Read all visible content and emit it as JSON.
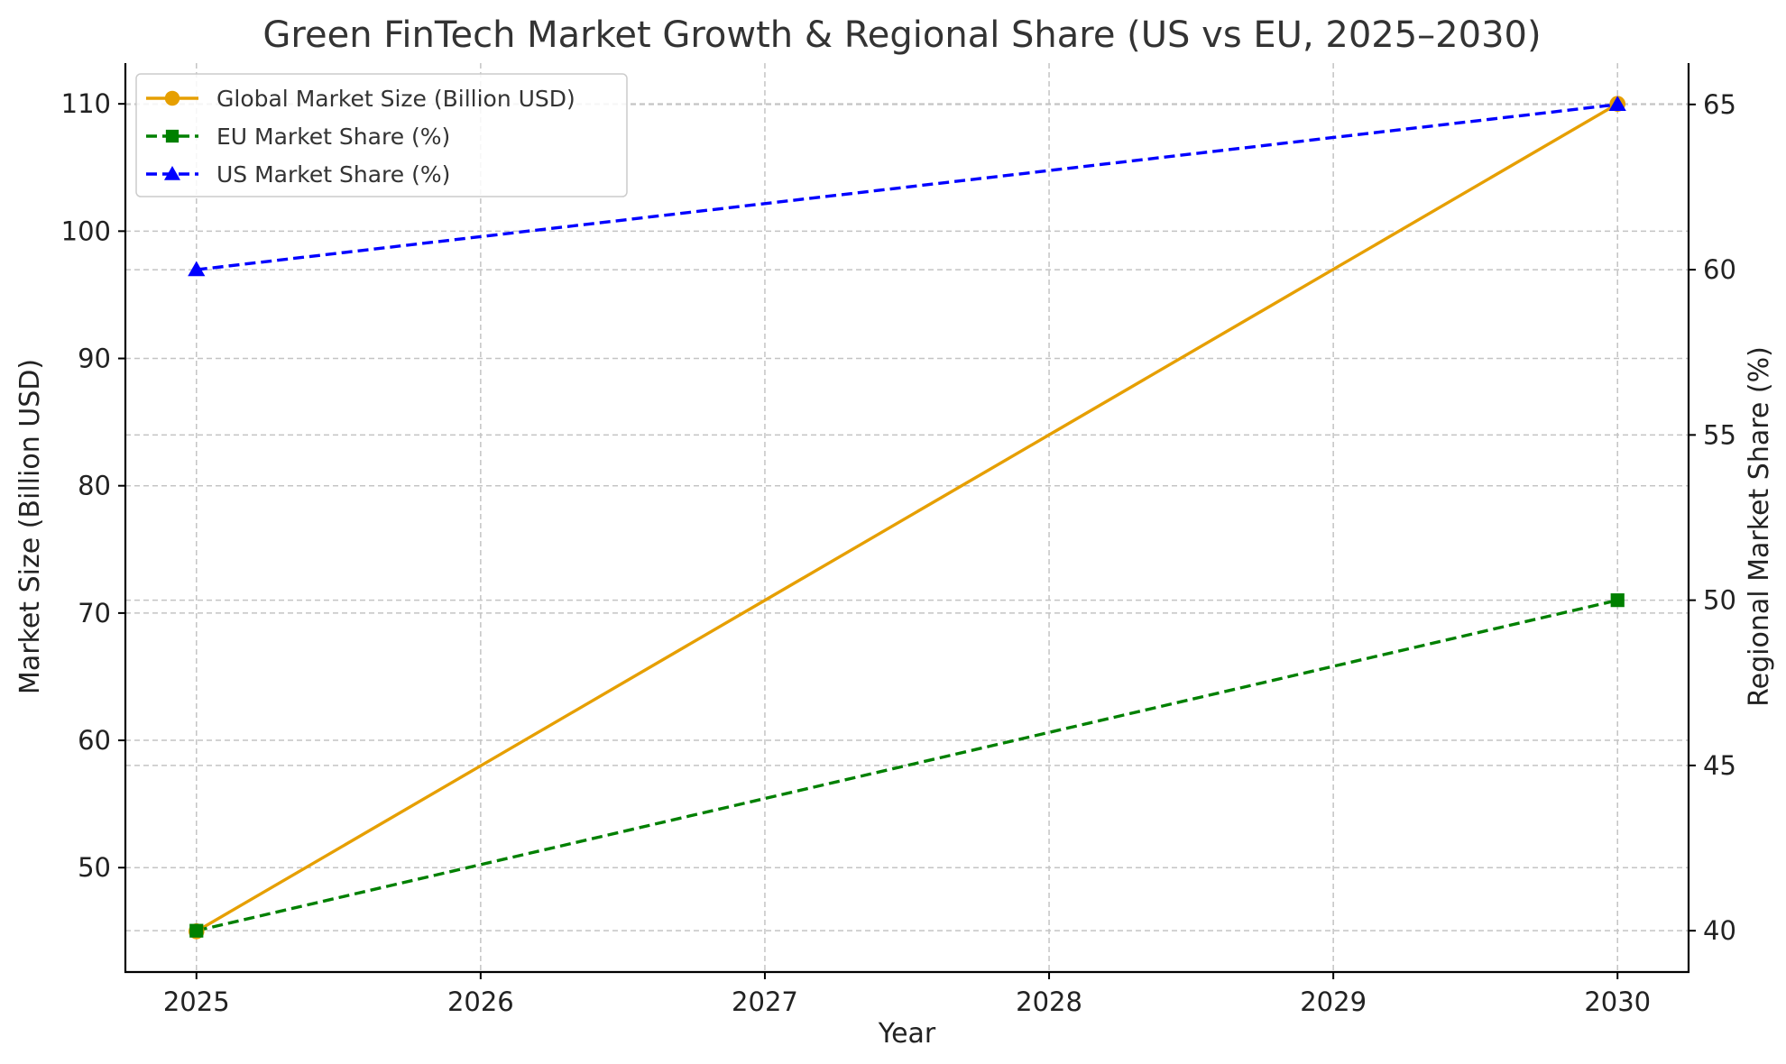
{
  "chart_data": {
    "type": "line",
    "title": "Green FinTech Market Growth & Regional Share (US vs EU, 2025–2030)",
    "xlabel": "Year",
    "ylabel": "Market Size (Billion USD)",
    "y2label": "Regional Market Share (%)",
    "categories": [
      "2025",
      "2026",
      "2027",
      "2028",
      "2029",
      "2030"
    ],
    "x": [
      2025,
      2026,
      2027,
      2028,
      2029,
      2030
    ],
    "xlim": [
      2024.75,
      2030.25
    ],
    "ylim": [
      41.8,
      113.2
    ],
    "y2lim": [
      38.75,
      66.25
    ],
    "yticks": [
      50,
      60,
      70,
      80,
      90,
      100,
      110
    ],
    "y2ticks": [
      40,
      45,
      50,
      55,
      60,
      65
    ],
    "grid": true,
    "legend_position": "top-left",
    "series": [
      {
        "name": "Global Market Size (Billion USD)",
        "axis": "left",
        "values": [
          45,
          58,
          71,
          84,
          97,
          110
        ],
        "color": "#E69F00",
        "linestyle": "solid",
        "marker": "circle",
        "marker_at": [
          0,
          5
        ]
      },
      {
        "name": "EU Market Share (%)",
        "axis": "right",
        "values": [
          40,
          42,
          44,
          46,
          48,
          50
        ],
        "color": "#008000",
        "linestyle": "dashed",
        "marker": "square",
        "marker_at": [
          0,
          5
        ]
      },
      {
        "name": "US Market Share (%)",
        "axis": "right",
        "values": [
          60,
          61,
          62,
          63,
          64,
          65
        ],
        "color": "#0000FF",
        "linestyle": "dashed",
        "marker": "triangle",
        "marker_at": [
          0,
          5
        ]
      }
    ]
  }
}
